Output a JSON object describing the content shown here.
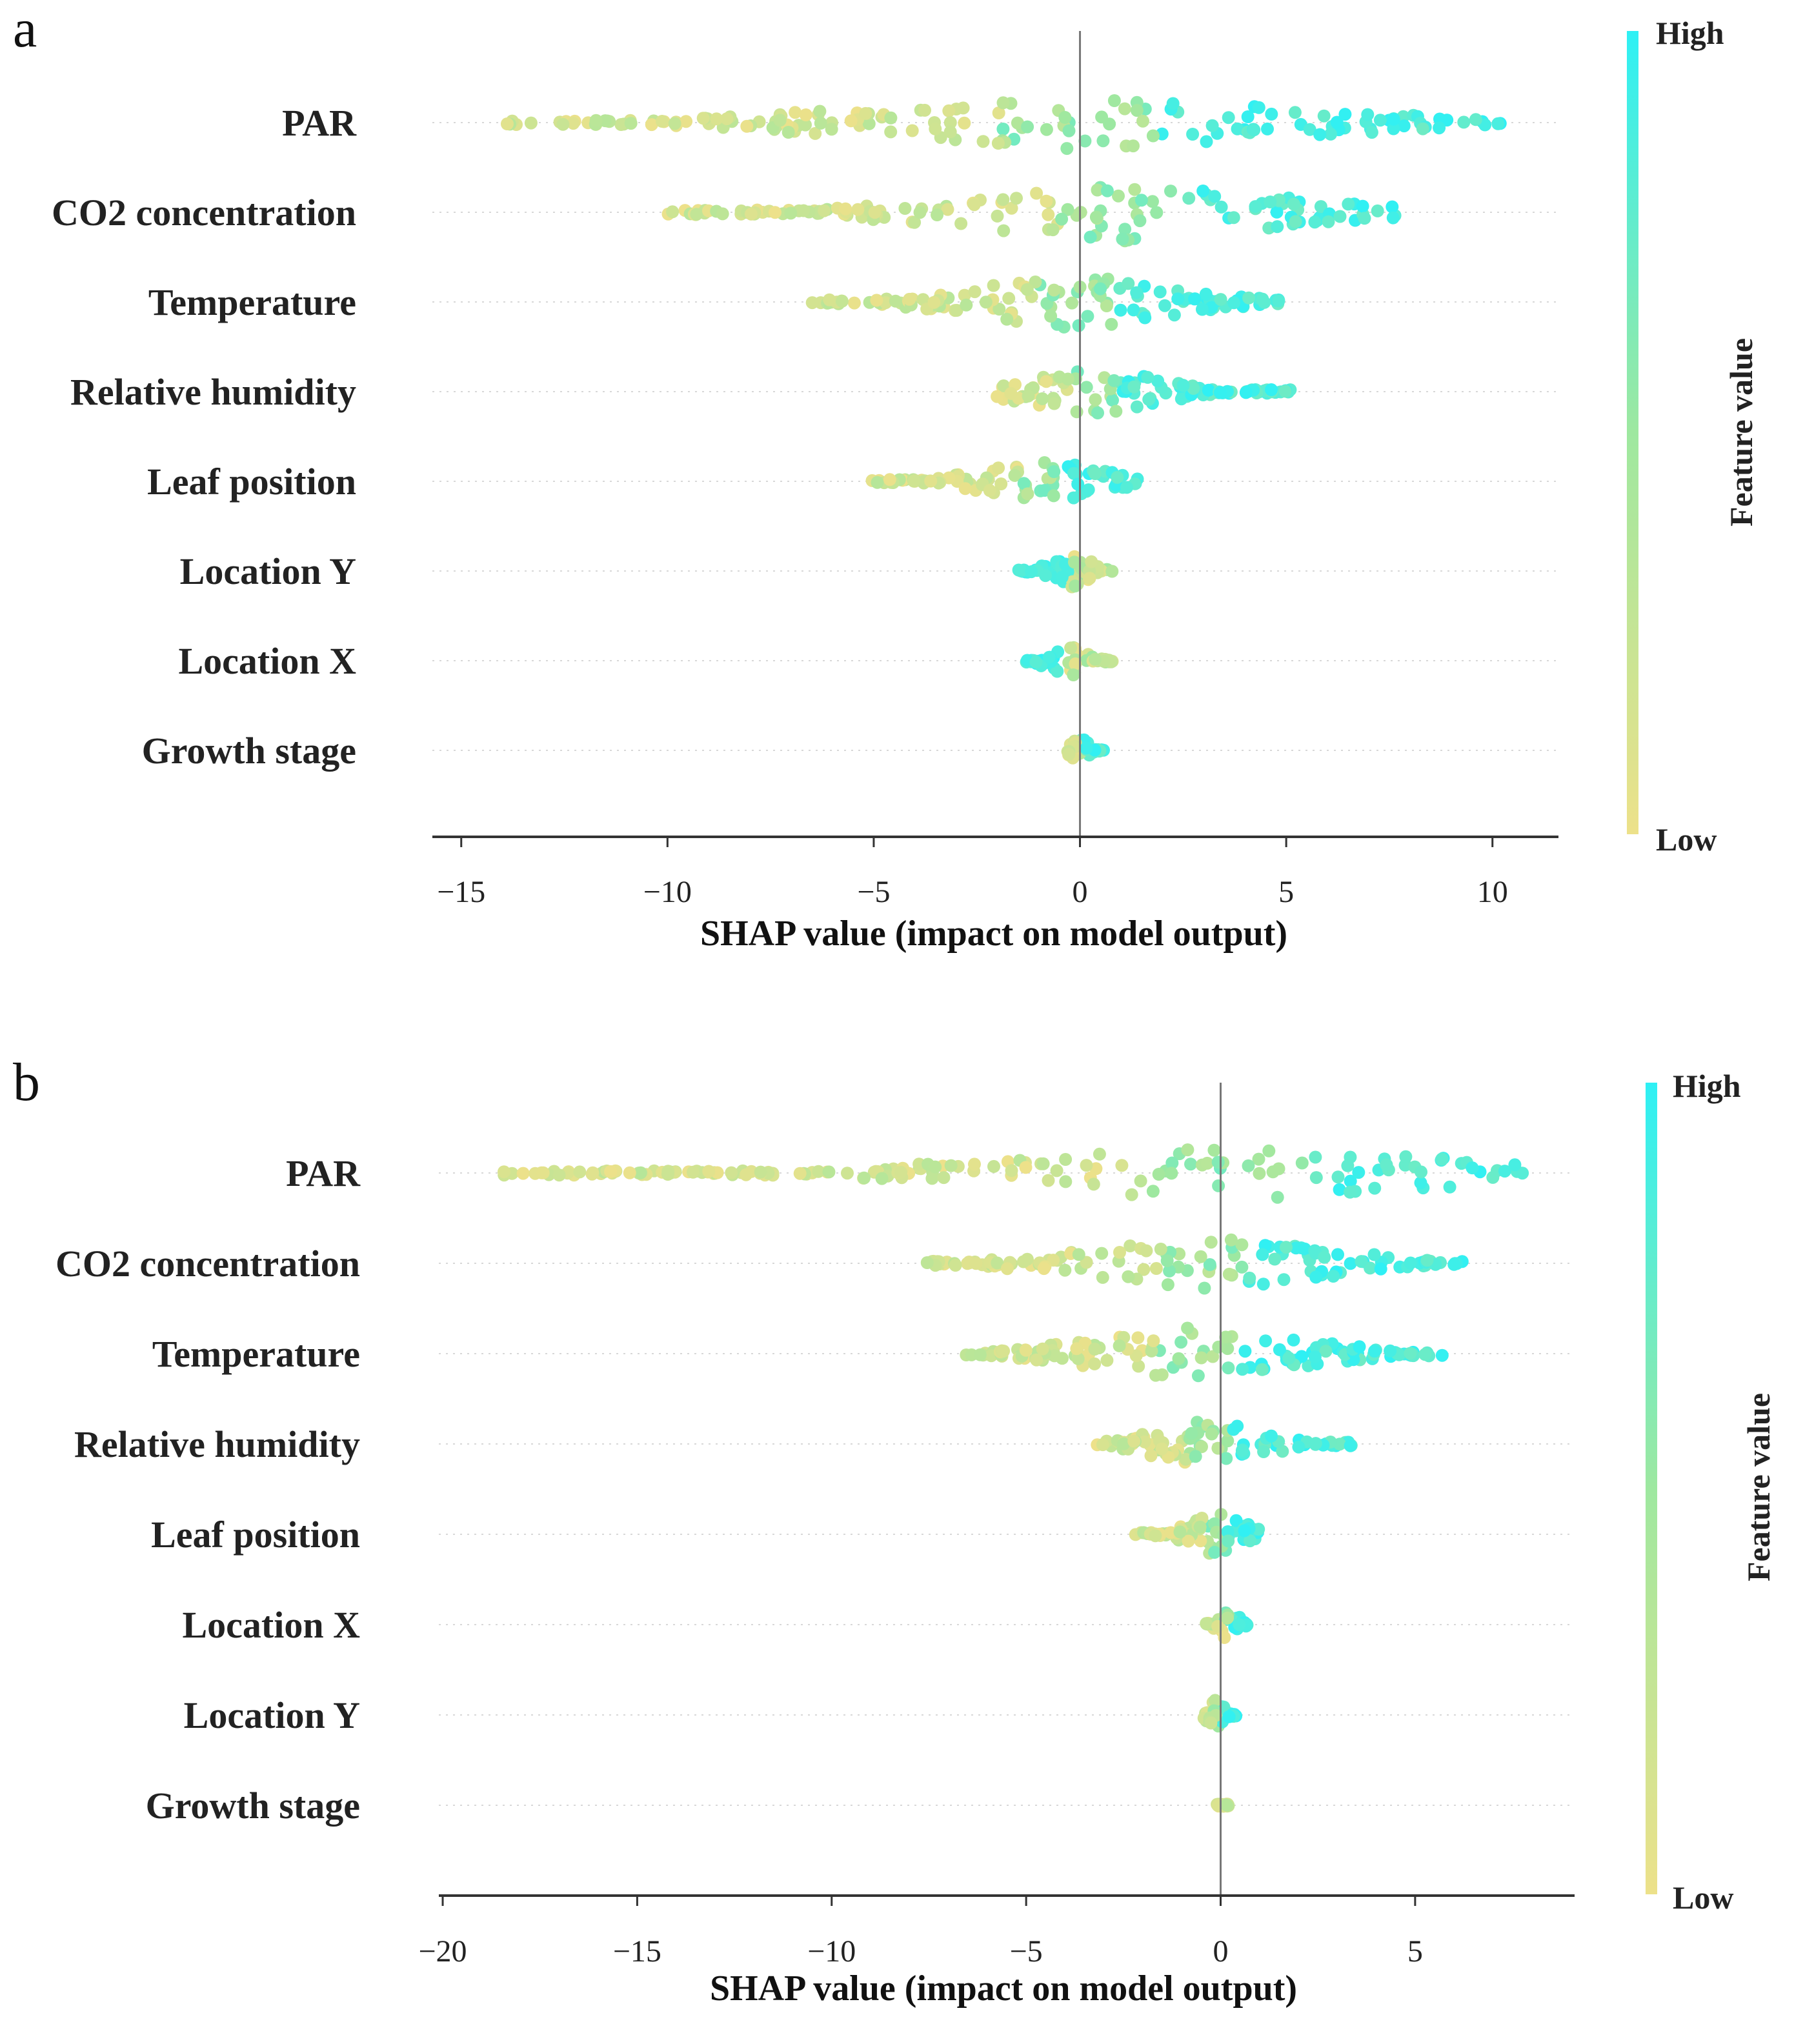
{
  "colors": {
    "high": "#2ef0f5",
    "low": "#ede18a",
    "mid": "#9ee8a0"
  },
  "chart_data": [
    {
      "type": "scatter",
      "panel_label": "a",
      "title": "",
      "xlabel": "SHAP value (impact on model output)",
      "xlim": [
        -15.7,
        11.6
      ],
      "xticks": [
        -15,
        -10,
        -5,
        0,
        5,
        10
      ],
      "xtick_labels": [
        "−15",
        "−10",
        "−5",
        "0",
        "5",
        "10"
      ],
      "colorbar": {
        "label": "Feature value",
        "high": "High",
        "low": "Low"
      },
      "features": [
        {
          "name": "PAR",
          "min": -14.2,
          "max": 10.2,
          "split": 0.0,
          "spread": 0.55,
          "density": 180
        },
        {
          "name": "CO2 concentration",
          "min": -10.3,
          "max": 7.8,
          "split": 1.0,
          "spread": 0.6,
          "density": 150
        },
        {
          "name": "Temperature",
          "min": -6.5,
          "max": 4.9,
          "split": -0.1,
          "spread": 0.55,
          "density": 130
        },
        {
          "name": "Relative humidity",
          "min": -2.1,
          "max": 5.1,
          "split": 0.3,
          "spread": 0.5,
          "density": 110
        },
        {
          "name": "Leaf position",
          "min": -5.1,
          "max": 1.4,
          "split": -0.9,
          "spread": 0.45,
          "density": 90
        },
        {
          "name": "Location Y",
          "min": -1.5,
          "max": 0.8,
          "split": -0.2,
          "spread": 0.35,
          "density": 60
        },
        {
          "name": "Location X",
          "min": -1.3,
          "max": 0.8,
          "split": -0.3,
          "spread": 0.35,
          "density": 55
        },
        {
          "name": "Growth stage",
          "min": -0.3,
          "max": 0.6,
          "split": 0.0,
          "spread": 0.3,
          "density": 40
        }
      ]
    },
    {
      "type": "scatter",
      "panel_label": "b",
      "title": "",
      "xlabel": "SHAP value (impact on model output)",
      "xlim": [
        -20.1,
        9.1
      ],
      "xticks": [
        -20,
        -15,
        -10,
        -5,
        0,
        5
      ],
      "xtick_labels": [
        "−20",
        "−15",
        "−10",
        "−5",
        "0",
        "5"
      ],
      "colorbar": {
        "label": "Feature value",
        "high": "High",
        "low": "Low"
      },
      "features": [
        {
          "name": "PAR",
          "min": -18.8,
          "max": 7.8,
          "split": 0.2,
          "spread": 0.55,
          "density": 180
        },
        {
          "name": "CO2 concentration",
          "min": -7.8,
          "max": 6.3,
          "split": -0.4,
          "spread": 0.55,
          "density": 140
        },
        {
          "name": "Temperature",
          "min": -6.6,
          "max": 5.8,
          "split": -0.6,
          "spread": 0.55,
          "density": 140
        },
        {
          "name": "Relative humidity",
          "min": -3.2,
          "max": 3.4,
          "split": -0.3,
          "spread": 0.5,
          "density": 90
        },
        {
          "name": "Leaf position",
          "min": -2.2,
          "max": 1.0,
          "split": -0.1,
          "spread": 0.45,
          "density": 70
        },
        {
          "name": "Location X",
          "min": -0.4,
          "max": 0.7,
          "split": 0.2,
          "spread": 0.35,
          "density": 40
        },
        {
          "name": "Location Y",
          "min": -0.5,
          "max": 0.4,
          "split": -0.1,
          "spread": 0.35,
          "density": 35
        },
        {
          "name": "Growth stage",
          "min": -0.1,
          "max": 0.2,
          "split": 0.5,
          "spread": 0.3,
          "density": 30
        }
      ]
    }
  ]
}
